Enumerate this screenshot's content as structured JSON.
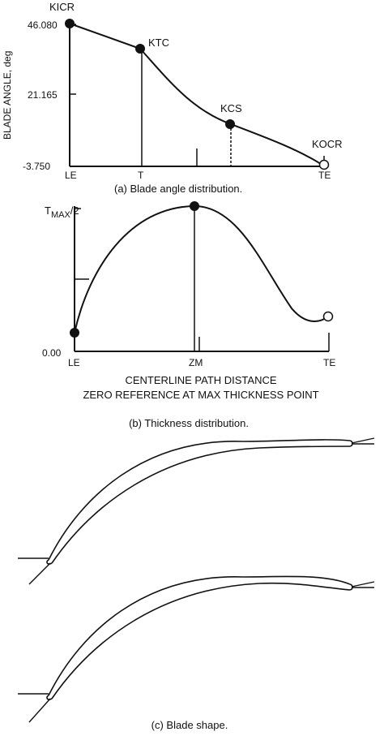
{
  "panel_a": {
    "y_axis_label": "BLADE ANGLE, deg",
    "y_ticks": [
      "46.080",
      "21.165",
      "-3.750"
    ],
    "x_ticks": [
      "LE",
      "T",
      "TE"
    ],
    "points": [
      "KICR",
      "KTC",
      "KCS",
      "KOCR"
    ],
    "caption": "(a) Blade angle distribution."
  },
  "panel_b": {
    "y_top_label": "TMAX/2",
    "y_top_main": "T",
    "y_top_sub": "MAX",
    "y_top_tail": "/2",
    "y_zero": "0.00",
    "x_ticks": [
      "LE",
      "ZM",
      "TE"
    ],
    "xlabel_line1": "CENTERLINE PATH DISTANCE",
    "xlabel_line2": "ZERO REFERENCE AT MAX THICKNESS POINT",
    "caption": "(b) Thickness distribution."
  },
  "panel_c": {
    "caption": "(c) Blade shape."
  },
  "colors": {
    "ink": "#111111",
    "background": "#ffffff"
  }
}
